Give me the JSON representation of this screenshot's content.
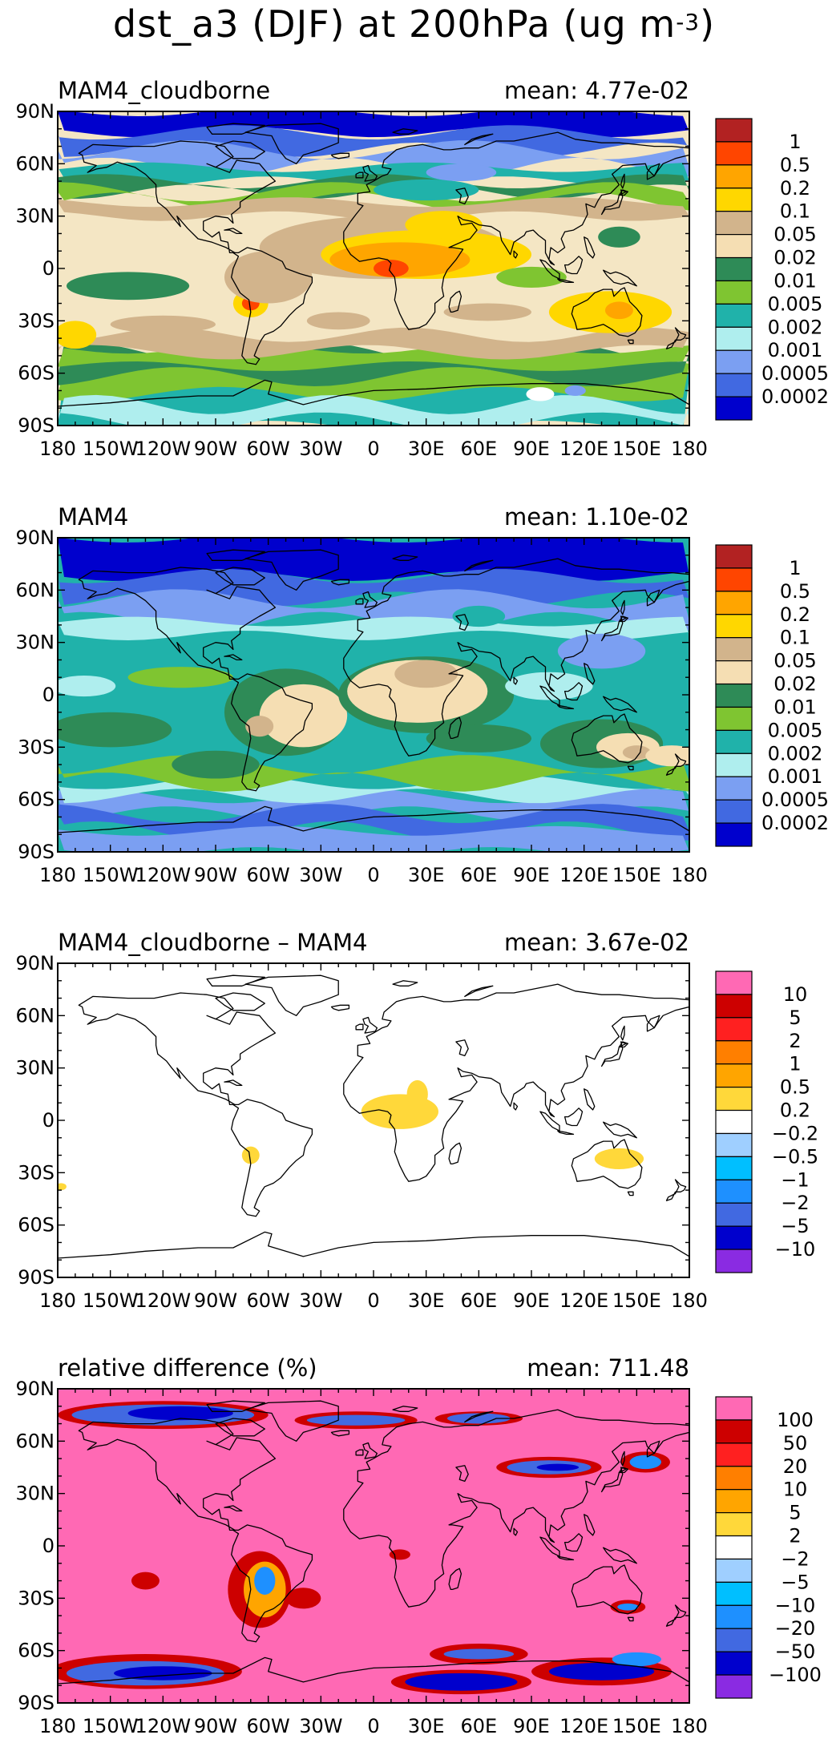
{
  "title": {
    "main": "dst_a3 (DJF) at 200hPa (ug m",
    "exp": "-3",
    "close": ")"
  },
  "lat_ticks": [
    "90N",
    "60N",
    "30N",
    "0",
    "30S",
    "60S",
    "90S"
  ],
  "lon_ticks": [
    "180",
    "150W",
    "120W",
    "90W",
    "60W",
    "30W",
    "0",
    "30E",
    "60E",
    "90E",
    "120E",
    "150E",
    "180"
  ],
  "panels": [
    {
      "label": "MAM4_cloudborne",
      "mean": "mean: 4.77e-02",
      "background": "#f4e6c4",
      "colorbar": {
        "labels": [
          "1",
          "0.5",
          "0.2",
          "0.1",
          "0.05",
          "0.02",
          "0.01",
          "0.005",
          "0.002",
          "0.001",
          "0.0005",
          "0.0002"
        ],
        "colors": [
          "#b22222",
          "#ff4500",
          "#ffa500",
          "#ffd700",
          "#d2b48c",
          "#f5deb3",
          "#2e8b57",
          "#7fc531",
          "#20b2aa",
          "#afeeee",
          "#7b9ff2",
          "#4169e1",
          "#0000cd"
        ]
      }
    },
    {
      "label": "MAM4",
      "mean": "mean: 1.10e-02",
      "background": "#20b2aa",
      "colorbar": {
        "labels": [
          "1",
          "0.5",
          "0.2",
          "0.1",
          "0.05",
          "0.02",
          "0.01",
          "0.005",
          "0.002",
          "0.001",
          "0.0005",
          "0.0002"
        ],
        "colors": [
          "#b22222",
          "#ff4500",
          "#ffa500",
          "#ffd700",
          "#d2b48c",
          "#f5deb3",
          "#2e8b57",
          "#7fc531",
          "#20b2aa",
          "#afeeee",
          "#7b9ff2",
          "#4169e1",
          "#0000cd"
        ]
      }
    },
    {
      "label": "MAM4_cloudborne – MAM4",
      "mean": "mean: 3.67e-02",
      "background": "#ffffff",
      "colorbar": {
        "labels": [
          "10",
          "5",
          "2",
          "1",
          "0.5",
          "0.2",
          "−0.2",
          "−0.5",
          "−1",
          "−2",
          "−5",
          "−10"
        ],
        "colors": [
          "#ff69b4",
          "#cd0000",
          "#ff2020",
          "#ff7f00",
          "#ffa500",
          "#ffd83a",
          "#ffffff",
          "#9fcfff",
          "#00bfff",
          "#1e90ff",
          "#4169e1",
          "#0000cd",
          "#8a2be2"
        ]
      }
    },
    {
      "label": "relative difference (%)",
      "mean": "mean: 711.48",
      "background": "#ff69b4",
      "colorbar": {
        "labels": [
          "100",
          "50",
          "20",
          "10",
          "5",
          "2",
          "−2",
          "−5",
          "−10",
          "−20",
          "−50",
          "−100"
        ],
        "colors": [
          "#ff69b4",
          "#cd0000",
          "#ff2020",
          "#ff7f00",
          "#ffa500",
          "#ffd83a",
          "#ffffff",
          "#9fcfff",
          "#00bfff",
          "#1e90ff",
          "#4169e1",
          "#0000cd",
          "#8a2be2"
        ]
      }
    }
  ]
}
